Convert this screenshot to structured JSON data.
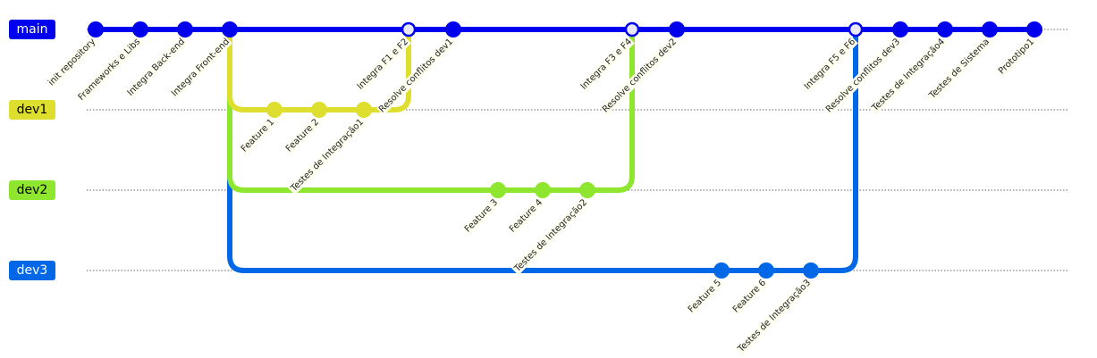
{
  "branches": [
    {
      "id": "main",
      "label": "main",
      "color": "#0000ee",
      "text_color": "#ffffff"
    },
    {
      "id": "dev1",
      "label": "dev1",
      "color": "#dede2e",
      "text_color": "#000000"
    },
    {
      "id": "dev2",
      "label": "dev2",
      "color": "#8ee62e",
      "text_color": "#000000"
    },
    {
      "id": "dev3",
      "label": "dev3",
      "color": "#0068e6",
      "text_color": "#ffffff"
    }
  ],
  "commits": [
    {
      "id": "c1",
      "branch": "main",
      "order": 0,
      "message": "init repository"
    },
    {
      "id": "c2",
      "branch": "main",
      "order": 1,
      "message": "Frameworks e Libs"
    },
    {
      "id": "c3",
      "branch": "main",
      "order": 2,
      "message": "Integra Back-end"
    },
    {
      "id": "c4",
      "branch": "main",
      "order": 3,
      "message": "Integra Front-end"
    },
    {
      "id": "d1a",
      "branch": "dev1",
      "order": 4,
      "message": "Feature 1"
    },
    {
      "id": "d1b",
      "branch": "dev1",
      "order": 5,
      "message": "Feature 2"
    },
    {
      "id": "d1c",
      "branch": "dev1",
      "order": 6,
      "message": "Testes de Integração1"
    },
    {
      "id": "m1",
      "branch": "main",
      "order": 7,
      "message": "Integra F1 e F2",
      "merge": true
    },
    {
      "id": "c5",
      "branch": "main",
      "order": 8,
      "message": "Resolve conflitos dev1"
    },
    {
      "id": "d2a",
      "branch": "dev2",
      "order": 9,
      "message": "Feature 3"
    },
    {
      "id": "d2b",
      "branch": "dev2",
      "order": 10,
      "message": "Feature 4"
    },
    {
      "id": "d2c",
      "branch": "dev2",
      "order": 11,
      "message": "Testes de Integração2"
    },
    {
      "id": "m2",
      "branch": "main",
      "order": 12,
      "message": "Integra F3 e F4",
      "merge": true
    },
    {
      "id": "c6",
      "branch": "main",
      "order": 13,
      "message": "Resolve conflitos dev2"
    },
    {
      "id": "d3a",
      "branch": "dev3",
      "order": 14,
      "message": "Feature 5"
    },
    {
      "id": "d3b",
      "branch": "dev3",
      "order": 15,
      "message": "Feature 6"
    },
    {
      "id": "d3c",
      "branch": "dev3",
      "order": 16,
      "message": "Testes de Integração3"
    },
    {
      "id": "m3",
      "branch": "main",
      "order": 17,
      "message": "Integra F5 e F6",
      "merge": true
    },
    {
      "id": "c7",
      "branch": "main",
      "order": 18,
      "message": "Resolve conflitos dev3"
    },
    {
      "id": "c8",
      "branch": "main",
      "order": 19,
      "message": "Testes de Integração4"
    },
    {
      "id": "c9",
      "branch": "main",
      "order": 20,
      "message": "Testes de Sistema"
    },
    {
      "id": "c10",
      "branch": "main",
      "order": 21,
      "message": "Prototipo1"
    }
  ],
  "branch_links": [
    {
      "from": "c4",
      "to": "d1a",
      "branch": "dev1"
    },
    {
      "from": "d1c",
      "to": "m1",
      "branch": "dev1"
    },
    {
      "from": "c4",
      "to": "d2a",
      "branch": "dev2"
    },
    {
      "from": "d2c",
      "to": "m2",
      "branch": "dev2"
    },
    {
      "from": "c4",
      "to": "d3a",
      "branch": "dev3"
    },
    {
      "from": "d3c",
      "to": "m3",
      "branch": "dev3"
    }
  ]
}
